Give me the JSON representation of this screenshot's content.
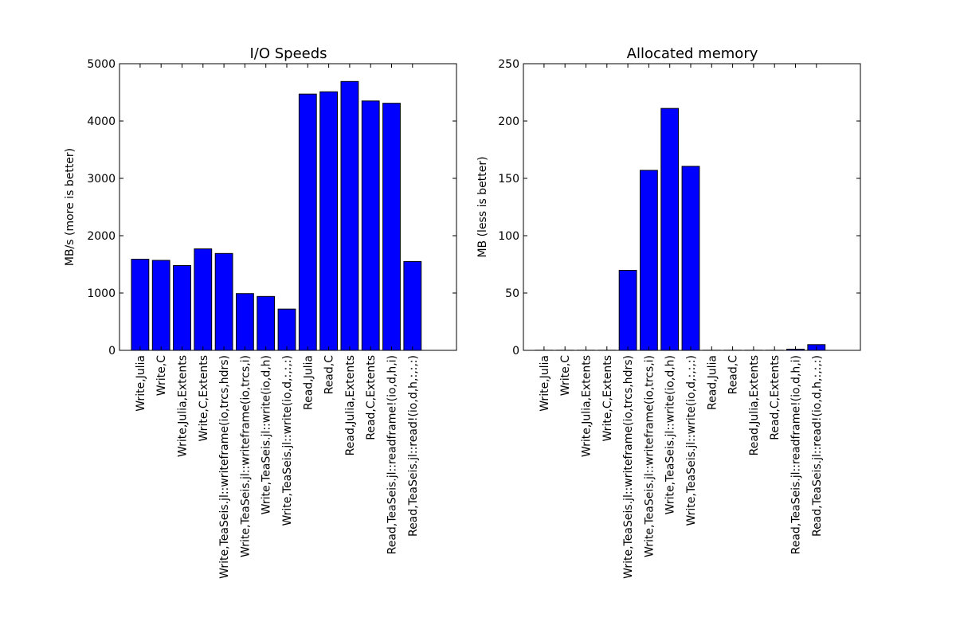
{
  "chart_data": [
    {
      "type": "bar",
      "title": "I/O Speeds",
      "xlabel": "",
      "ylabel": "MB/s (more is better)",
      "ylim": [
        0,
        5000
      ],
      "yticks": [
        0,
        1000,
        2000,
        3000,
        4000,
        5000
      ],
      "bar_color": "#0000ff",
      "categories": [
        "Write,Julia",
        "Write,C",
        "Write,Julia,Extents",
        "Write,C,Extents",
        "Write,TeaSeis.jl::writeframe(io,trcs,hdrs)",
        "Write,TeaSeis.jl::writeframe(io,trcs,i)",
        "Write,TeaSeis.jl::write(io,d,h)",
        "Write,TeaSeis.jl::write(io,d,:,:,:)",
        "Read,Julia",
        "Read,C",
        "Read,Julia,Extents",
        "Read,C,Extents",
        "Read,TeaSeis.jl::readframe!(io,d,h,i)",
        "Read,TeaSeis.jl::read!(io,d,h,:,:,:)"
      ],
      "values": [
        1590,
        1570,
        1480,
        1770,
        1690,
        990,
        940,
        720,
        4470,
        4510,
        4690,
        4350,
        4310,
        1550
      ]
    },
    {
      "type": "bar",
      "title": "Allocated memory",
      "xlabel": "",
      "ylabel": "MB (less is better)",
      "ylim": [
        0,
        250
      ],
      "yticks": [
        0,
        50,
        100,
        150,
        200,
        250
      ],
      "bar_color": "#0000ff",
      "categories": [
        "Write,Julia",
        "Write,C",
        "Write,Julia,Extents",
        "Write,C,Extents",
        "Write,TeaSeis.jl::writeframe(io,trcs,hdrs)",
        "Write,TeaSeis.jl::writeframe(io,trcs,i)",
        "Write,TeaSeis.jl::write(io,d,h)",
        "Write,TeaSeis.jl::write(io,d,:,:,:)",
        "Read,Julia",
        "Read,C",
        "Read,Julia,Extents",
        "Read,C,Extents",
        "Read,TeaSeis.jl::readframe!(io,d,h,i)",
        "Read,TeaSeis.jl::read!(io,d,h,:,:,:)"
      ],
      "values": [
        0.1,
        0.1,
        0.1,
        0.1,
        69.8,
        157,
        211,
        160.5,
        0.1,
        0.1,
        0.1,
        0.1,
        1,
        5
      ]
    }
  ]
}
